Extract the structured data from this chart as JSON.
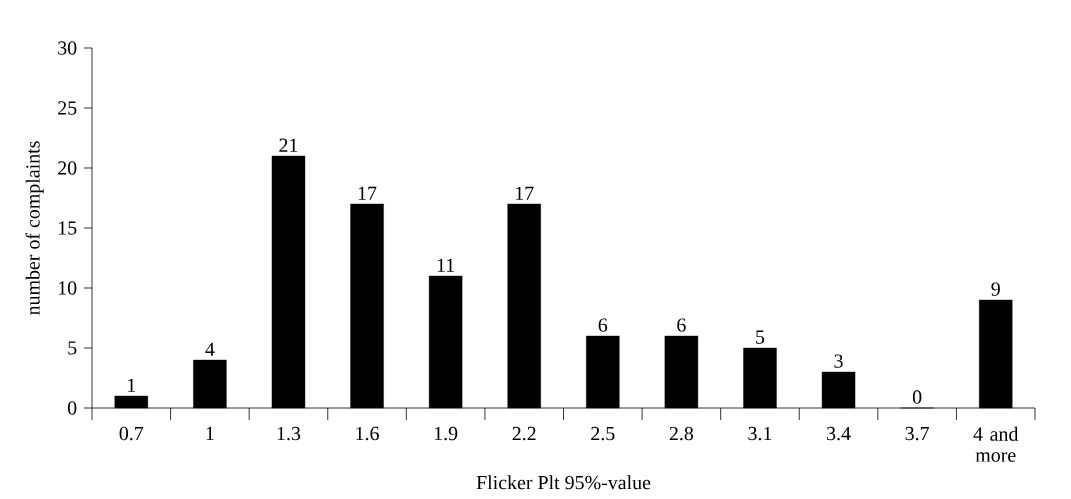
{
  "chart_data": {
    "type": "bar",
    "xlabel": "Flicker Plt 95%-value",
    "ylabel": "number of complaints",
    "categories": [
      "0.7",
      "1",
      "1.3",
      "1.6",
      "1.9",
      "2.2",
      "2.5",
      "2.8",
      "3.1",
      "3.4",
      "3.7",
      "4 and more"
    ],
    "values": [
      1,
      4,
      21,
      17,
      11,
      17,
      6,
      6,
      5,
      3,
      0,
      9
    ],
    "color": "#000000",
    "ylim": [
      0,
      30
    ],
    "yticks": [
      0,
      5,
      10,
      15,
      20,
      25,
      30
    ],
    "data_labels": true
  }
}
